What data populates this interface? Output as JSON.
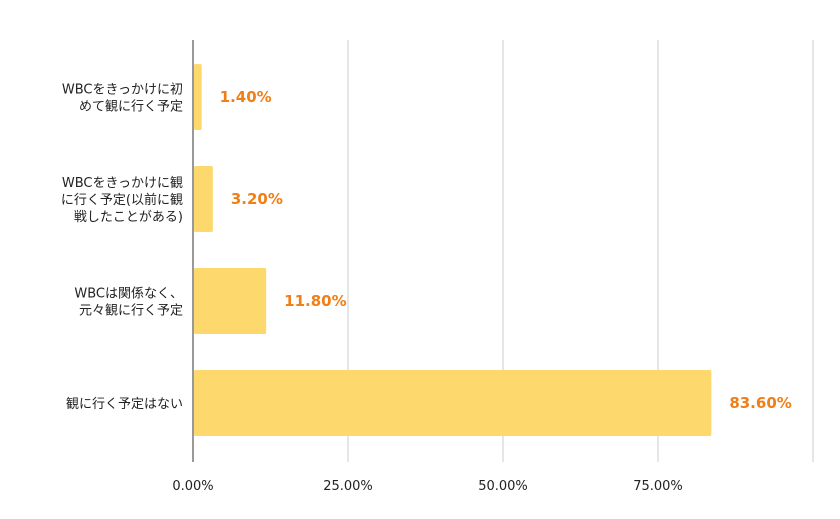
{
  "chart_data": {
    "type": "bar",
    "orientation": "horizontal",
    "categories": [
      [
        "WBCをきっかけに初",
        "めて観に行く予定"
      ],
      [
        "WBCをきっかけに観",
        "に行く予定(以前に観",
        "戦したことがある)"
      ],
      [
        "WBCは関係なく、",
        "元々観に行く予定"
      ],
      [
        "観に行く予定はない"
      ]
    ],
    "values": [
      1.4,
      3.2,
      11.8,
      83.6
    ],
    "data_labels": [
      "1.40%",
      "3.20%",
      "11.80%",
      "83.60%"
    ],
    "xlim": [
      0,
      100
    ],
    "x_ticks": [
      0,
      25,
      50,
      75
    ],
    "x_tick_labels": [
      "0.00%",
      "25.00%",
      "50.00%",
      "75.00%"
    ],
    "grid": true,
    "legend": "none",
    "colors": {
      "bar": "#fdd86d",
      "data_label": "#f07f18",
      "grid": "#cccccc",
      "axis": "#333333"
    }
  }
}
